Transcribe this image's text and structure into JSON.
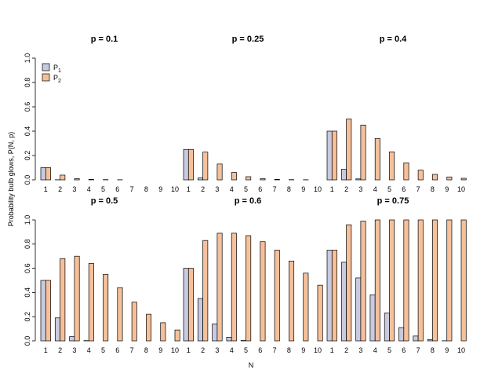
{
  "colors": {
    "p1": "#c8cbe0",
    "p2": "#f5c09a"
  },
  "chart_data": {
    "type": "bar",
    "x_label": "N",
    "y_label": "Probability bulb glows, P(N, p)",
    "legend": [
      {
        "base": "P",
        "sub": "1",
        "color_key": "p1"
      },
      {
        "base": "P",
        "sub": "2",
        "color_key": "p2"
      }
    ],
    "y_ticks": [
      "0.0",
      "0.2",
      "0.4",
      "0.6",
      "0.8",
      "1.0"
    ],
    "ylim": [
      0,
      1
    ],
    "categories": [
      "1",
      "2",
      "3",
      "4",
      "5",
      "6",
      "7",
      "8",
      "9",
      "10"
    ],
    "panels": [
      {
        "title": "p = 0.1",
        "series": [
          {
            "name": "P1",
            "values": [
              0.1,
              0.001,
              0.0,
              0.0,
              0.0,
              0.0,
              0.0,
              0.0,
              0.0,
              0.0
            ]
          },
          {
            "name": "P2",
            "values": [
              0.1,
              0.039,
              0.01,
              0.004,
              0.002,
              0.001,
              0.0,
              0.0,
              0.0,
              0.0
            ]
          }
        ]
      },
      {
        "title": "p = 0.25",
        "series": [
          {
            "name": "P1",
            "values": [
              0.25,
              0.016,
              0.0,
              0.0,
              0.0,
              0.0,
              0.0,
              0.0,
              0.0,
              0.0
            ]
          },
          {
            "name": "P2",
            "values": [
              0.25,
              0.228,
              0.13,
              0.061,
              0.026,
              0.01,
              0.004,
              0.002,
              0.001,
              0.0
            ]
          }
        ]
      },
      {
        "title": "p = 0.4",
        "series": [
          {
            "name": "P1",
            "values": [
              0.4,
              0.087,
              0.008,
              0.0,
              0.0,
              0.0,
              0.0,
              0.0,
              0.0,
              0.0
            ]
          },
          {
            "name": "P2",
            "values": [
              0.4,
              0.5,
              0.45,
              0.34,
              0.23,
              0.14,
              0.08,
              0.045,
              0.024,
              0.013
            ]
          }
        ]
      },
      {
        "title": "p = 0.5",
        "series": [
          {
            "name": "P1",
            "values": [
              0.5,
              0.19,
              0.035,
              0.002,
              0.0,
              0.0,
              0.0,
              0.0,
              0.0,
              0.0
            ]
          },
          {
            "name": "P2",
            "values": [
              0.5,
              0.68,
              0.7,
              0.64,
              0.55,
              0.44,
              0.32,
              0.22,
              0.15,
              0.09
            ]
          }
        ]
      },
      {
        "title": "p = 0.6",
        "series": [
          {
            "name": "P1",
            "values": [
              0.6,
              0.35,
              0.14,
              0.03,
              0.003,
              0.0,
              0.0,
              0.0,
              0.0,
              0.0
            ]
          },
          {
            "name": "P2",
            "values": [
              0.6,
              0.83,
              0.89,
              0.89,
              0.87,
              0.82,
              0.75,
              0.66,
              0.56,
              0.46
            ]
          }
        ]
      },
      {
        "title": "p = 0.75",
        "series": [
          {
            "name": "P1",
            "values": [
              0.75,
              0.65,
              0.52,
              0.38,
              0.23,
              0.11,
              0.04,
              0.01,
              0.001,
              0.0
            ]
          },
          {
            "name": "P2",
            "values": [
              0.75,
              0.96,
              0.99,
              1.0,
              1.0,
              1.0,
              1.0,
              1.0,
              1.0,
              1.0
            ]
          }
        ]
      }
    ]
  }
}
